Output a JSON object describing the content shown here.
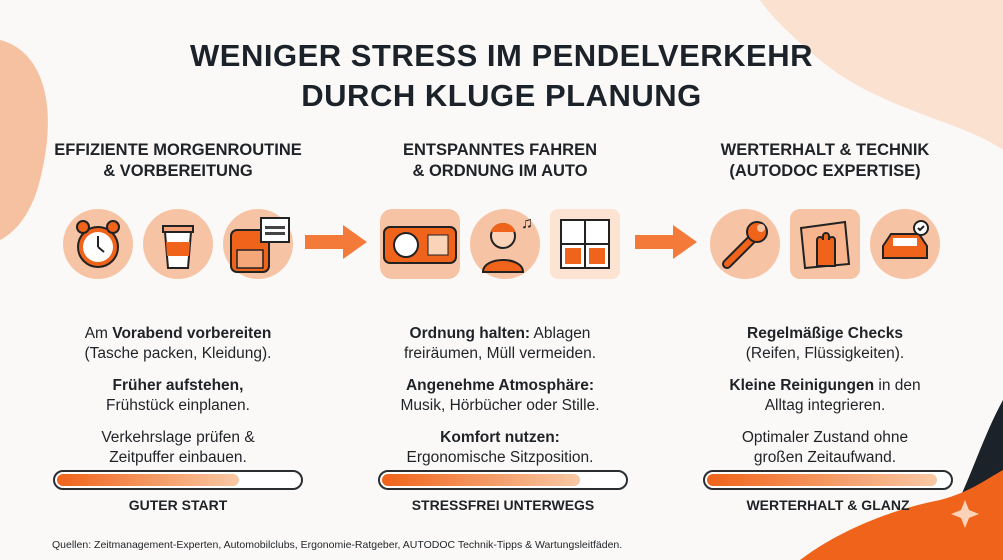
{
  "title_line1": "WENIGER STRESS IM PENDELVERKEHR",
  "title_line2": "DURCH KLUGE PLANUNG",
  "accent_color": "#f0631a",
  "columns": [
    {
      "heading_1": "EFFIZIENTE MORGENROUTINE",
      "heading_2": "& VORBEREITUNG",
      "icons": [
        "alarm-clock-icon",
        "coffee-cup-icon",
        "backpack-calendar-icon"
      ],
      "items": [
        {
          "bold": "Vorabend vorbereiten",
          "pre": "Am ",
          "post": "",
          "line2": "(Tasche packen, Kleidung)."
        },
        {
          "bold": "Früher aufstehen,",
          "pre": "",
          "post": "",
          "line2": "Frühstück einplanen."
        },
        {
          "bold": "",
          "pre": "Verkehrslage prüfen &",
          "post": "",
          "line2": "Zeitpuffer einbauen."
        }
      ],
      "progress": 0.75,
      "label": "GUTER START"
    },
    {
      "heading_1": "ENTSPANNTES FAHREN",
      "heading_2": "& ORDNUNG IM AUTO",
      "icons": [
        "car-dashboard-icon",
        "relaxed-driver-music-icon",
        "organizer-icon"
      ],
      "items": [
        {
          "bold": "Ordnung halten:",
          "pre": "",
          "post": " Ablagen",
          "line2": "freiräumen, Müll vermeiden."
        },
        {
          "bold": "Angenehme Atmosphäre:",
          "pre": "",
          "post": "",
          "line2": "Musik, Hörbücher oder Stille."
        },
        {
          "bold": "Komfort nutzen:",
          "pre": "",
          "post": "",
          "line2": "Ergonomische Sitzposition."
        }
      ],
      "progress": 0.82,
      "label": "STRESSFREI UNTERWEGS"
    },
    {
      "heading_1": "WERTERHALT & TECHNIK",
      "heading_2": "(AUTODOC EXPERTISE)",
      "icons": [
        "wrench-icon",
        "cleaning-cloth-icon",
        "car-check-icon"
      ],
      "items": [
        {
          "bold": "Regelmäßige Checks",
          "pre": "",
          "post": "",
          "line2": "(Reifen, Flüssigkeiten)."
        },
        {
          "bold": "Kleine Reinigungen",
          "pre": "",
          "post": " in den",
          "line2": "Alltag integrieren."
        },
        {
          "bold": "",
          "pre": "Optimaler Zustand ohne",
          "post": "",
          "line2": "großen Zeitaufwand."
        }
      ],
      "progress": 0.95,
      "label": "WERTERHALT & GLANZ"
    }
  ],
  "sources": "Quellen: Zeitmanagement-Experten, Automobilclubs, Ergonomie-Ratgeber, AUTODOC Technik-Tipps & Wartungsleitfäden."
}
